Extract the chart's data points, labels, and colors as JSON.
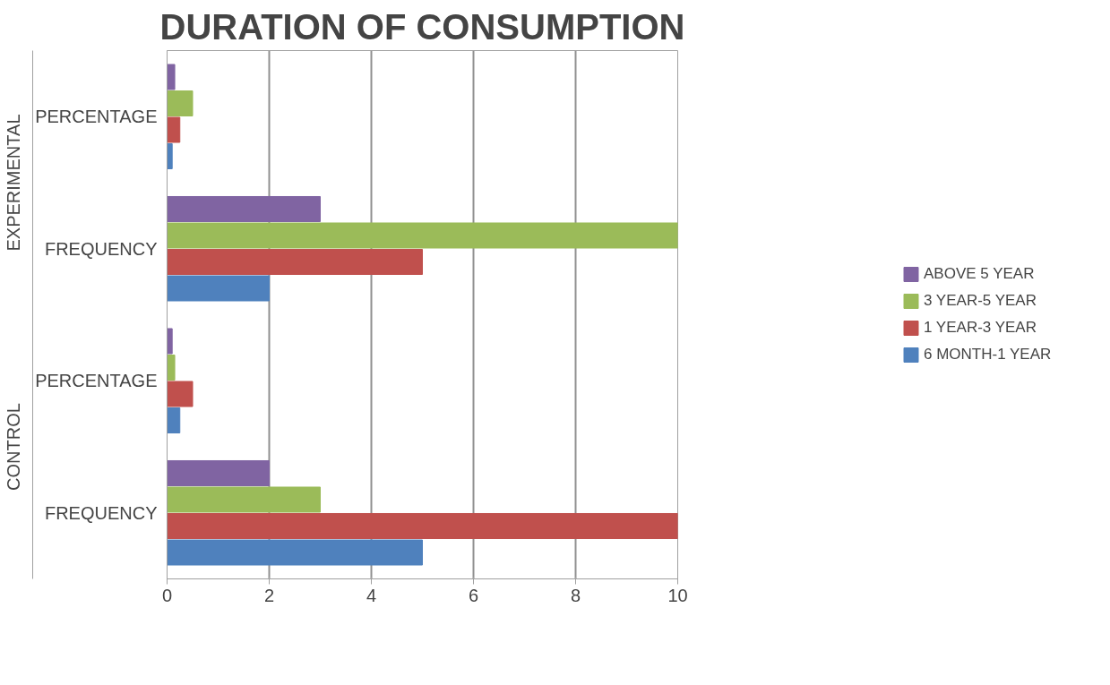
{
  "chart_data": {
    "type": "bar",
    "orientation": "horizontal",
    "title": "DURATION OF CONSUMPTION",
    "categories": [
      "PERCENTAGE",
      "FREQUENCY",
      "PERCENTAGE",
      "FREQUENCY"
    ],
    "annotations": [
      "EXPERIMENTAL",
      "CONTROL"
    ],
    "series": [
      {
        "name": "6 MONTH-1 YEAR",
        "color": "#4f81bd",
        "values": [
          0.1,
          2,
          0.25,
          5
        ]
      },
      {
        "name": "1 YEAR-3 YEAR",
        "color": "#c0504d",
        "values": [
          0.25,
          5,
          0.5,
          10
        ]
      },
      {
        "name": "3 YEAR-5 YEAR",
        "color": "#9bbb59",
        "values": [
          0.5,
          10,
          0.15,
          3
        ]
      },
      {
        "name": "ABOVE 5 YEAR",
        "color": "#8064a2",
        "values": [
          0.15,
          3,
          0.1,
          2
        ]
      }
    ],
    "xlim": [
      0,
      10
    ],
    "xticks": [
      0,
      2,
      4,
      6,
      8,
      10
    ],
    "grid": "x",
    "legend": "right"
  }
}
